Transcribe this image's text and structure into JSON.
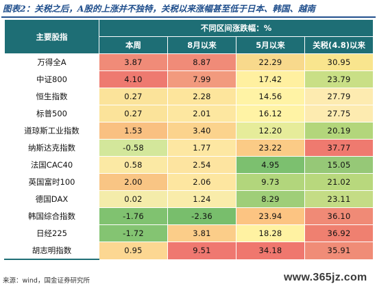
{
  "caption": "图表2：关税之后，A股的上涨并不独特，关税以来涨幅甚至低于日本、韩国、越南",
  "table": {
    "row_header": "主要股指",
    "group_header": "不同区间涨跌幅：%",
    "columns": [
      "本周",
      "8月以来",
      "5月以来",
      "关税(4.8)以来"
    ],
    "rows": [
      {
        "name": "万得全A",
        "values": [
          "3.87",
          "8.87",
          "22.29",
          "30.95"
        ],
        "colors": [
          "#f08b78",
          "#f08b78",
          "#f8d98c",
          "#f9e58e"
        ]
      },
      {
        "name": "中证800",
        "values": [
          "4.10",
          "7.99",
          "17.42",
          "23.79"
        ],
        "colors": [
          "#ee7a70",
          "#f29a7e",
          "#fff0a0",
          "#c9df86"
        ]
      },
      {
        "name": "恒生指数",
        "values": [
          "0.27",
          "2.28",
          "14.56",
          "27.79"
        ],
        "colors": [
          "#fbe39a",
          "#fde59c",
          "#fff3a5",
          "#fdebb0"
        ]
      },
      {
        "name": "标普500",
        "values": [
          "0.27",
          "2.01",
          "16.12",
          "27.75"
        ],
        "colors": [
          "#fbe39a",
          "#fde7a0",
          "#fff3a5",
          "#fdebb0"
        ]
      },
      {
        "name": "道琼斯工业指数",
        "values": [
          "1.53",
          "3.40",
          "12.20",
          "20.19"
        ],
        "colors": [
          "#f9c081",
          "#fbd38d",
          "#e6ec9a",
          "#b3d67b"
        ]
      },
      {
        "name": "纳斯达克指数",
        "values": [
          "-0.58",
          "1.77",
          "23.22",
          "37.77"
        ],
        "colors": [
          "#d3e79b",
          "#fde7a2",
          "#fbcb86",
          "#ef7a6f"
        ]
      },
      {
        "name": "法国CAC40",
        "values": [
          "0.58",
          "2.54",
          "4.95",
          "15.05"
        ],
        "colors": [
          "#fbe9a4",
          "#fde4a0",
          "#7cc06f",
          "#96c877"
        ]
      },
      {
        "name": "英国富时100",
        "values": [
          "2.00",
          "2.06",
          "9.73",
          "21.02"
        ],
        "colors": [
          "#f9c584",
          "#fde6a0",
          "#b2d67c",
          "#b8d87d"
        ]
      },
      {
        "name": "德国DAX",
        "values": [
          "0.02",
          "1.24",
          "8.29",
          "23.11"
        ],
        "colors": [
          "#f4ecaa",
          "#f9ecaa",
          "#9fce78",
          "#c4dc85"
        ]
      },
      {
        "name": "韩国综合指数",
        "values": [
          "-1.76",
          "-2.36",
          "23.94",
          "36.10"
        ],
        "colors": [
          "#80c270",
          "#78be6c",
          "#fcc482",
          "#f08a76"
        ]
      },
      {
        "name": "日经225",
        "values": [
          "-1.72",
          "3.81",
          "18.28",
          "36.92"
        ],
        "colors": [
          "#84c472",
          "#fbcd89",
          "#fff2a2",
          "#ef8070"
        ]
      },
      {
        "name": "胡志明指数",
        "values": [
          "0.95",
          "9.51",
          "34.18",
          "35.91"
        ],
        "colors": [
          "#fcd792",
          "#ef7870",
          "#ef776e",
          "#f08c77"
        ]
      }
    ]
  },
  "source": "来源：wind，国金证券研究所",
  "watermark": "www.365jz.com"
}
